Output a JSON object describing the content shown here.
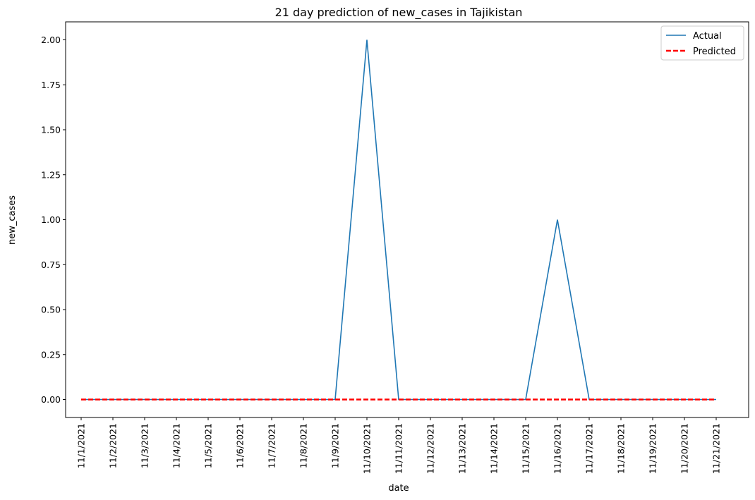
{
  "chart_data": {
    "type": "line",
    "title": "21 day prediction of new_cases in Tajikistan",
    "xlabel": "date",
    "ylabel": "new_cases",
    "categories": [
      "11/1/2021",
      "11/2/2021",
      "11/3/2021",
      "11/4/2021",
      "11/5/2021",
      "11/6/2021",
      "11/7/2021",
      "11/8/2021",
      "11/9/2021",
      "11/10/2021",
      "11/11/2021",
      "11/12/2021",
      "11/13/2021",
      "11/14/2021",
      "11/15/2021",
      "11/16/2021",
      "11/17/2021",
      "11/18/2021",
      "11/19/2021",
      "11/20/2021",
      "11/21/2021"
    ],
    "series": [
      {
        "name": "Actual",
        "color": "#1f77b4",
        "style": "solid",
        "values": [
          0,
          0,
          0,
          0,
          0,
          0,
          0,
          0,
          0,
          2,
          0,
          0,
          0,
          0,
          0,
          1,
          0,
          0,
          0,
          0,
          0
        ]
      },
      {
        "name": "Predicted",
        "color": "#ff0000",
        "style": "dashed",
        "values": [
          0,
          0,
          0,
          0,
          0,
          0,
          0,
          0,
          0,
          0,
          0,
          0,
          0,
          0,
          0,
          0,
          0,
          0,
          0,
          0,
          0
        ]
      }
    ],
    "ylim": [
      -0.1,
      2.1
    ],
    "yticks": [
      0.0,
      0.25,
      0.5,
      0.75,
      1.0,
      1.25,
      1.5,
      1.75,
      2.0
    ],
    "ytick_labels": [
      "0.00",
      "0.25",
      "0.50",
      "0.75",
      "1.00",
      "1.25",
      "1.50",
      "1.75",
      "2.00"
    ],
    "grid": false,
    "legend_position": "top-right"
  }
}
